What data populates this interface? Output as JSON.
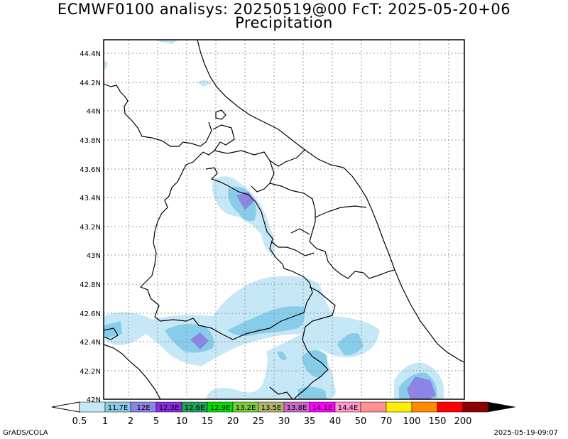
{
  "title_line1": "ECMWF0100 analisys: 20250519@00 FcT: 2025-05-20+06",
  "title_line2": "Precipitation",
  "lat_labels": [
    "44.4N",
    "44.2N",
    "44N",
    "43.8N",
    "43.6N",
    "43.4N",
    "43.2N",
    "43N",
    "42.8N",
    "42.6N",
    "42.4N",
    "42.2N",
    "42N"
  ],
  "colorbar": {
    "values": [
      "0.5",
      "1",
      "2",
      "5",
      "10",
      "15",
      "20",
      "25",
      "30",
      "35",
      "40",
      "50",
      "70",
      "100",
      "150",
      "200"
    ],
    "colors": [
      "#c6e7f5",
      "#87cdea",
      "#8d84e6",
      "#8a2be2",
      "#1fa05a",
      "#00e000",
      "#7acc3c",
      "#b3b36a",
      "#cc66cc",
      "#ff00ff",
      "#ff99cc",
      "#ff9191",
      "#ffee00",
      "#ff8c00",
      "#ff0000",
      "#8b0000"
    ],
    "inner_labels": [
      "11.7E",
      "12E",
      "12.3E",
      "12.6E",
      "12.9E",
      "13.2E",
      "13.5E",
      "13.8E",
      "14.1E",
      "14.4E"
    ]
  },
  "footer_left": "GrADS/COLA",
  "footer_right": "2025-05-19-09:07"
}
